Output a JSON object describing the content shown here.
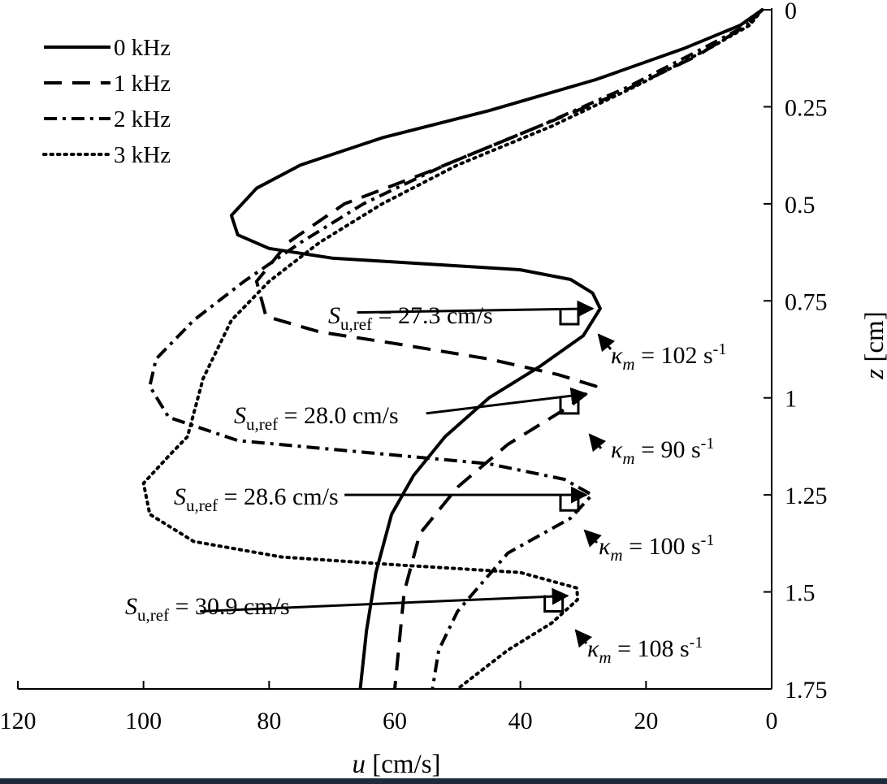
{
  "chart_data": {
    "type": "line",
    "title": "",
    "xlabel": {
      "symbol": "u",
      "unit": "[cm/s]"
    },
    "ylabel": {
      "symbol": "z",
      "unit": "[cm]"
    },
    "xlim": [
      120,
      0
    ],
    "ylim": [
      0,
      1.75
    ],
    "x_reversed": true,
    "y_reversed": true,
    "x_ticks": [
      120,
      100,
      80,
      60,
      40,
      20,
      0
    ],
    "x_tick_labels": [
      "120",
      "100",
      "80",
      "60",
      "40",
      "20",
      "0"
    ],
    "y_ticks": [
      0,
      0.25,
      0.5,
      0.75,
      1,
      1.25,
      1.5,
      1.75
    ],
    "y_tick_labels": [
      "0",
      "0.25",
      "0.5",
      "0.75",
      "1",
      "1.25",
      "1.5",
      "1.75"
    ],
    "y_axis_position": "right",
    "legend_position": "top-left",
    "series": [
      {
        "name": "0 kHz",
        "style": "solid",
        "points": [
          [
            1.5,
            0
          ],
          [
            5,
            0.04
          ],
          [
            14,
            0.1
          ],
          [
            28,
            0.18
          ],
          [
            45,
            0.26
          ],
          [
            62,
            0.33
          ],
          [
            75,
            0.4
          ],
          [
            82,
            0.46
          ],
          [
            86,
            0.53
          ],
          [
            85,
            0.58
          ],
          [
            80,
            0.615
          ],
          [
            70,
            0.64
          ],
          [
            55,
            0.655
          ],
          [
            40,
            0.67
          ],
          [
            32,
            0.695
          ],
          [
            28.5,
            0.73
          ],
          [
            27.3,
            0.77
          ],
          [
            30,
            0.84
          ],
          [
            37,
            0.92
          ],
          [
            45,
            1.0
          ],
          [
            52,
            1.1
          ],
          [
            57,
            1.2
          ],
          [
            60.5,
            1.3
          ],
          [
            63,
            1.45
          ],
          [
            64.5,
            1.6
          ],
          [
            65.5,
            1.75
          ]
        ]
      },
      {
        "name": "1 kHz",
        "style": "dashed",
        "points": [
          [
            1.5,
            0
          ],
          [
            4,
            0.04
          ],
          [
            12,
            0.12
          ],
          [
            25,
            0.22
          ],
          [
            40,
            0.32
          ],
          [
            55,
            0.42
          ],
          [
            68,
            0.5
          ],
          [
            77,
            0.6
          ],
          [
            82,
            0.7
          ],
          [
            80.5,
            0.79
          ],
          [
            72,
            0.83
          ],
          [
            60,
            0.86
          ],
          [
            45,
            0.9
          ],
          [
            34,
            0.94
          ],
          [
            28,
            0.97
          ],
          [
            32,
            1.02
          ],
          [
            42,
            1.12
          ],
          [
            50,
            1.23
          ],
          [
            56,
            1.35
          ],
          [
            58.5,
            1.5
          ],
          [
            60,
            1.75
          ]
        ]
      },
      {
        "name": "2 kHz",
        "style": "dashdot",
        "points": [
          [
            1.5,
            0
          ],
          [
            4,
            0.04
          ],
          [
            11,
            0.1
          ],
          [
            23,
            0.2
          ],
          [
            37,
            0.3
          ],
          [
            52,
            0.4
          ],
          [
            65,
            0.5
          ],
          [
            75,
            0.6
          ],
          [
            84,
            0.7
          ],
          [
            92,
            0.8
          ],
          [
            98,
            0.9
          ],
          [
            99,
            0.97
          ],
          [
            96,
            1.05
          ],
          [
            85,
            1.11
          ],
          [
            65,
            1.14
          ],
          [
            45,
            1.17
          ],
          [
            33,
            1.21
          ],
          [
            28.6,
            1.25
          ],
          [
            32,
            1.31
          ],
          [
            42,
            1.4
          ],
          [
            50,
            1.55
          ],
          [
            53,
            1.65
          ],
          [
            54,
            1.75
          ]
        ]
      },
      {
        "name": "3 kHz",
        "style": "dotted",
        "points": [
          [
            1.5,
            0
          ],
          [
            3.5,
            0.04
          ],
          [
            10,
            0.1
          ],
          [
            22,
            0.2
          ],
          [
            35,
            0.3
          ],
          [
            50,
            0.4
          ],
          [
            62,
            0.5
          ],
          [
            72,
            0.6
          ],
          [
            80,
            0.7
          ],
          [
            86,
            0.8
          ],
          [
            90.5,
            0.95
          ],
          [
            93,
            1.1
          ],
          [
            96,
            1.15
          ],
          [
            100,
            1.22
          ],
          [
            99,
            1.3
          ],
          [
            92,
            1.37
          ],
          [
            78,
            1.41
          ],
          [
            60,
            1.43
          ],
          [
            40,
            1.45
          ],
          [
            31,
            1.49
          ],
          [
            30.9,
            1.52
          ],
          [
            35,
            1.58
          ],
          [
            42,
            1.65
          ],
          [
            50,
            1.75
          ]
        ]
      }
    ],
    "annotations": [
      {
        "s_symbol": "S",
        "s_sub": "u,ref",
        "s_text": "= 27.3 cm/s",
        "from": [
          66,
          0.78
        ],
        "to": [
          28,
          0.77
        ]
      },
      {
        "s_symbol": "S",
        "s_sub": "u,ref",
        "s_text": "= 28.0 cm/s",
        "from": [
          55,
          1.04
        ],
        "to": [
          29,
          0.99
        ]
      },
      {
        "s_symbol": "S",
        "s_sub": "u,ref",
        "s_text": "= 28.6 cm/s",
        "from": [
          68,
          1.25
        ],
        "to": [
          29,
          1.25
        ]
      },
      {
        "s_symbol": "S",
        "s_sub": "u,ref",
        "s_text": "= 30.9 cm/s",
        "from": [
          91,
          1.55
        ],
        "to": [
          32,
          1.51
        ]
      }
    ],
    "kappa_labels": [
      {
        "symbol": "κ",
        "sub": "m",
        "text": "= 102 s",
        "sup": "-1",
        "marker_at": [
          30,
          0.81
        ]
      },
      {
        "symbol": "κ",
        "sub": "m",
        "text": "= 90 s",
        "sup": "-1",
        "marker_at": [
          30,
          1.04
        ]
      },
      {
        "symbol": "κ",
        "sub": "m",
        "text": "= 100 s",
        "sup": "-1",
        "marker_at": [
          30,
          1.29
        ]
      },
      {
        "symbol": "κ",
        "sub": "m",
        "text": "= 108 s",
        "sup": "-1",
        "marker_at": [
          32.5,
          1.55
        ]
      }
    ]
  }
}
